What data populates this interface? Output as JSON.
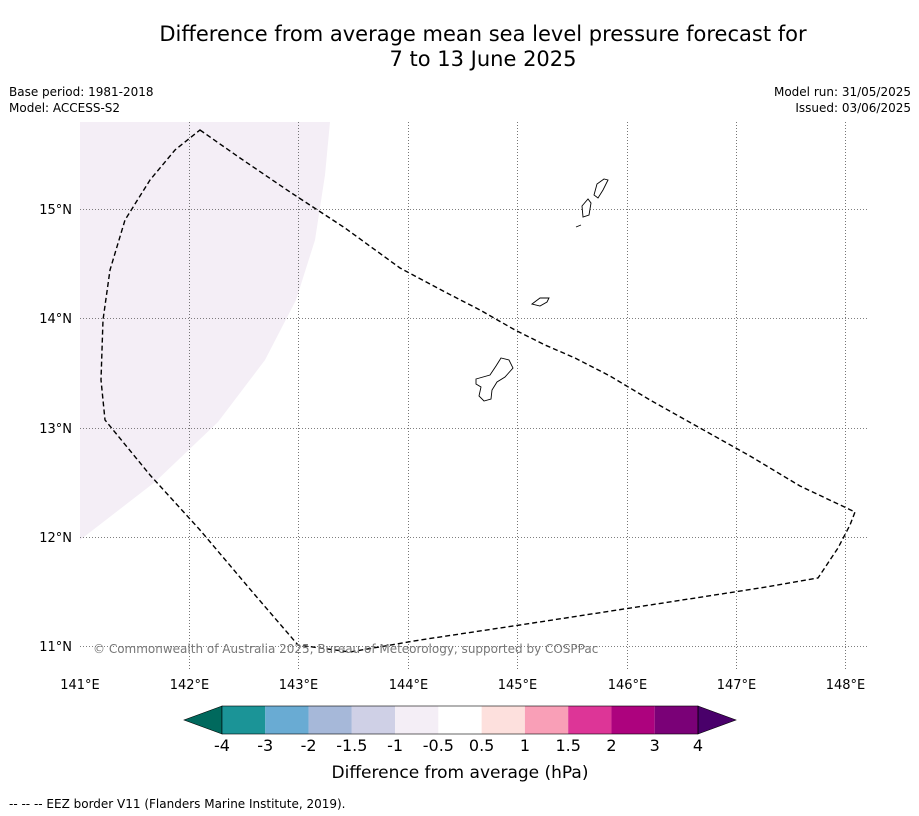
{
  "title": {
    "line1": "Difference from average mean sea level pressure forecast for",
    "line2": "7 to 13 June 2025"
  },
  "meta": {
    "base_period": "Base period: 1981-2018",
    "model": "Model: ACCESS-S2",
    "model_run": "Model run: 31/05/2025",
    "issued": "Issued: 03/06/2025"
  },
  "map": {
    "lon_ticks": [
      "141°E",
      "142°E",
      "143°E",
      "144°E",
      "145°E",
      "146°E",
      "147°E",
      "148°E"
    ],
    "lat_ticks": [
      "15°N",
      "14°N",
      "13°N",
      "12°N",
      "11°N"
    ],
    "copyright": "© Commonwealth of Australia 2025, Bureau of Meteorology, supported by COSPPac",
    "anomaly_fill_color": "#f4eef6",
    "border_color": "#000000"
  },
  "colorbar": {
    "colors": [
      "#00695d",
      "#1b9497",
      "#69abd3",
      "#a6b8d9",
      "#cfd0e6",
      "#f4eef6",
      "#ffffff",
      "#fde0dd",
      "#f99fb7",
      "#dd3597",
      "#ad027e",
      "#7a0177",
      "#49006a"
    ],
    "tick_labels": [
      "-4",
      "-3",
      "-2",
      "-1.5",
      "-1",
      "-0.5",
      "0.5",
      "1",
      "1.5",
      "2",
      "3",
      "4"
    ],
    "label": "Difference from average (hPa)"
  },
  "footnote": "--  --  -- EEZ border V11 (Flanders Marine Institute, 2019)."
}
